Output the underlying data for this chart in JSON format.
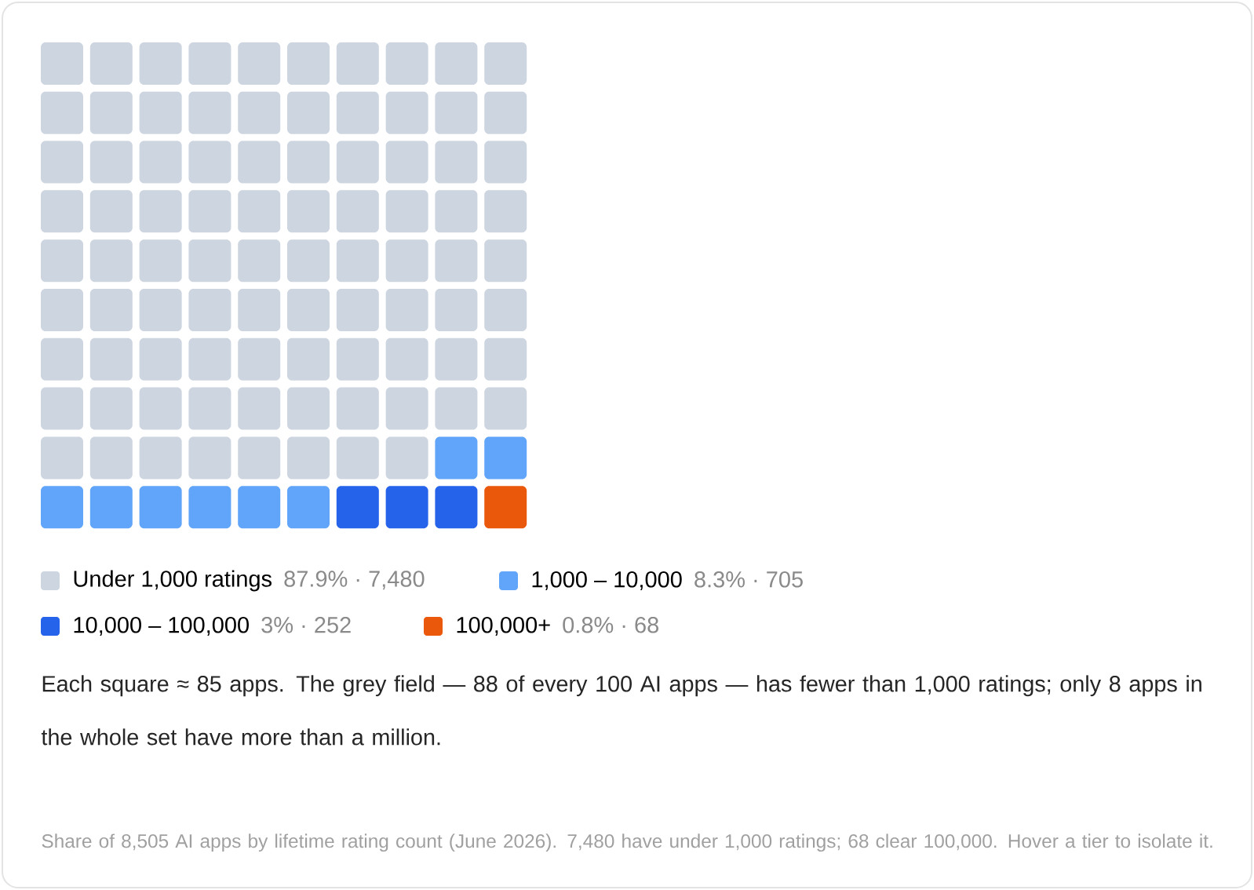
{
  "chart_data": {
    "type": "other",
    "categories": [
      "Under 1,000 ratings",
      "1,000 – 10,000",
      "10,000 – 100,000",
      "100,000+"
    ],
    "values": [
      87.9,
      8.3,
      3,
      0.8
    ],
    "value_labels": [
      "87.9% · 7,480",
      "8.3% · 705",
      "3% · 252",
      "0.8% · 68"
    ],
    "colors": [
      "#cdd5e0",
      "#60a5fa",
      "#2563eb",
      "#ea580c"
    ],
    "annotations": [
      "Each square ≈ 85 apps. The grey field — 88 of every 100 AI apps — has fewer than 1,000 ratings; only 8 apps in the whole set have more than a million.",
      "Share of 8,505 AI apps by lifetime rating count (June 2026). 7,480 have under 1,000 ratings; 68 clear 100,000. Hover a tier to isolate it."
    ]
  }
}
